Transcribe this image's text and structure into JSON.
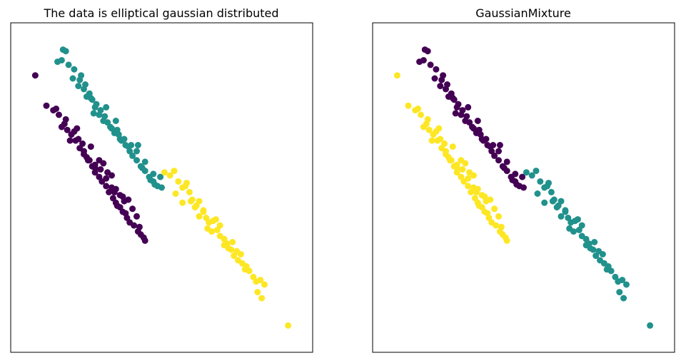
{
  "chart_data": [
    {
      "type": "scatter",
      "title": "The data is elliptical gaussian distributed",
      "xlabel": "",
      "ylabel": "",
      "xlim": [
        0,
        10
      ],
      "ylim": [
        0,
        10
      ],
      "grid": false,
      "series": [
        {
          "color": "#440154",
          "x": [
            0.45,
            0.85,
            1.1,
            1.3,
            1.5,
            1.6,
            1.75,
            1.9,
            2.05,
            2.2,
            2.35,
            2.5,
            2.6,
            2.75,
            2.85,
            3.0,
            3.1,
            3.25,
            3.35,
            3.5,
            3.6,
            3.75,
            3.85,
            4.0,
            4.15,
            4.25,
            4.4,
            1.2,
            1.4,
            1.7,
            2.0,
            2.3,
            2.6,
            2.9,
            3.2,
            3.5,
            3.8,
            4.1,
            1.55,
            1.85,
            2.15,
            2.45,
            2.75,
            3.05,
            3.35,
            3.65,
            3.95,
            2.4,
            2.8,
            3.2,
            3.6,
            3.4,
            3.0,
            2.6,
            4.2,
            4.35,
            3.7,
            3.3,
            2.2,
            1.95
          ],
          "y": [
            8.7,
            7.7,
            7.55,
            7.4,
            7.1,
            6.9,
            6.75,
            6.55,
            6.3,
            6.1,
            5.9,
            5.7,
            5.5,
            5.35,
            5.2,
            5.05,
            4.85,
            4.65,
            4.5,
            4.35,
            4.2,
            4.0,
            3.85,
            3.75,
            3.55,
            3.45,
            3.25,
            7.6,
            7.0,
            6.55,
            6.6,
            6.0,
            5.65,
            5.8,
            5.4,
            4.75,
            4.6,
            4.05,
            7.25,
            6.85,
            6.45,
            6.35,
            5.9,
            5.5,
            4.95,
            4.55,
            4.3,
            5.9,
            5.6,
            5.0,
            4.7,
            4.4,
            5.3,
            5.75,
            3.7,
            3.35,
            4.15,
            4.85,
            6.2,
            6.95
          ]
        },
        {
          "color": "#21918c",
          "x": [
            1.45,
            1.55,
            1.25,
            1.65,
            1.85,
            2.05,
            2.0,
            2.25,
            2.4,
            2.5,
            2.65,
            2.8,
            2.95,
            3.05,
            3.15,
            3.3,
            3.45,
            3.55,
            3.7,
            3.85,
            3.95,
            4.1,
            4.25,
            4.4,
            4.55,
            4.7,
            4.85,
            5.0,
            1.8,
            2.1,
            2.3,
            2.6,
            2.9,
            3.2,
            3.5,
            3.8,
            4.1,
            4.4,
            4.7,
            2.2,
            2.45,
            2.75,
            3.0,
            3.35,
            3.65,
            3.9,
            4.3,
            4.6,
            1.4,
            4.15,
            3.4,
            2.55,
            4.95,
            4.75
          ],
          "y": [
            9.55,
            9.5,
            9.15,
            9.05,
            8.9,
            8.55,
            8.35,
            8.4,
            8.1,
            7.9,
            7.75,
            7.55,
            7.35,
            7.15,
            7.0,
            6.8,
            6.75,
            6.55,
            6.4,
            6.2,
            6.05,
            5.9,
            5.7,
            5.55,
            5.35,
            5.2,
            5.05,
            5.0,
            8.6,
            8.7,
            8.0,
            7.65,
            7.2,
            6.95,
            6.6,
            6.35,
            6.2,
            5.85,
            5.45,
            8.25,
            7.95,
            7.4,
            7.65,
            7.2,
            6.6,
            6.4,
            5.65,
            5.25,
            9.2,
            6.4,
            6.9,
            7.45,
            5.35,
            5.1
          ],
          "note": ""
        },
        {
          "color": "#fde725",
          "x": [
            5.1,
            5.3,
            5.45,
            5.6,
            5.75,
            5.85,
            6.0,
            6.1,
            6.25,
            6.35,
            6.5,
            6.6,
            6.7,
            6.85,
            7.0,
            7.1,
            7.25,
            7.35,
            7.5,
            7.6,
            7.75,
            7.9,
            8.0,
            8.15,
            8.3,
            8.55,
            8.7,
            8.6,
            9.55,
            5.5,
            5.75,
            6.05,
            6.35,
            6.65,
            6.95,
            7.25,
            7.55,
            7.85,
            5.9,
            6.2,
            6.5,
            6.8,
            7.1,
            7.4,
            7.7,
            8.05,
            8.4,
            8.45
          ],
          "y": [
            5.5,
            5.4,
            5.55,
            5.2,
            5.0,
            5.05,
            4.85,
            4.6,
            4.4,
            4.55,
            4.2,
            4.0,
            3.85,
            3.9,
            3.6,
            3.4,
            3.3,
            3.15,
            2.95,
            2.75,
            2.6,
            2.5,
            2.3,
            2.25,
            2.05,
            1.95,
            1.8,
            1.35,
            0.45,
            4.8,
            4.5,
            4.55,
            4.05,
            3.65,
            3.95,
            3.1,
            3.2,
            2.8,
            5.15,
            4.35,
            4.25,
            3.55,
            3.75,
            3.0,
            2.9,
            2.4,
            1.9,
            1.55
          ]
        }
      ]
    },
    {
      "type": "scatter",
      "title": "GaussianMixture",
      "xlabel": "",
      "ylabel": "",
      "xlim": [
        0,
        10
      ],
      "ylim": [
        0,
        10
      ],
      "grid": false,
      "series": [
        {
          "color": "#440154",
          "x": [
            1.45,
            1.55,
            1.25,
            1.65,
            1.85,
            2.05,
            2.0,
            2.25,
            2.4,
            2.5,
            2.65,
            2.8,
            2.95,
            3.05,
            3.15,
            3.3,
            3.45,
            3.55,
            3.7,
            3.85,
            3.95,
            4.1,
            4.25,
            4.4,
            4.55,
            4.7,
            4.85,
            5.0,
            1.8,
            2.1,
            2.3,
            2.6,
            2.9,
            3.2,
            3.5,
            3.8,
            4.1,
            4.4,
            4.7,
            2.2,
            2.45,
            2.75,
            3.0,
            3.35,
            3.65,
            3.9,
            4.3,
            4.6,
            1.4,
            4.15,
            3.4,
            2.55,
            4.95,
            4.75
          ],
          "y": [
            9.55,
            9.5,
            9.15,
            9.05,
            8.9,
            8.55,
            8.35,
            8.4,
            8.1,
            7.9,
            7.75,
            7.55,
            7.35,
            7.15,
            7.0,
            6.8,
            6.75,
            6.55,
            6.4,
            6.2,
            6.05,
            5.9,
            5.7,
            5.55,
            5.35,
            5.2,
            5.05,
            5.0,
            8.6,
            8.7,
            8.0,
            7.65,
            7.2,
            6.95,
            6.6,
            6.35,
            6.2,
            5.85,
            5.45,
            8.25,
            7.95,
            7.4,
            7.65,
            7.2,
            6.6,
            6.4,
            5.65,
            5.25,
            9.2,
            6.4,
            6.9,
            7.45,
            5.35,
            5.1
          ]
        },
        {
          "color": "#21918c",
          "x": [
            5.1,
            5.3,
            5.45,
            5.6,
            5.75,
            5.85,
            6.0,
            6.1,
            6.25,
            6.35,
            6.5,
            6.6,
            6.7,
            6.85,
            7.0,
            7.1,
            7.25,
            7.35,
            7.5,
            7.6,
            7.75,
            7.9,
            8.0,
            8.15,
            8.3,
            8.55,
            8.7,
            8.6,
            9.55,
            5.5,
            5.75,
            6.05,
            6.35,
            6.65,
            6.95,
            7.25,
            7.55,
            7.85,
            5.9,
            6.2,
            6.5,
            6.8,
            7.1,
            7.4,
            7.7,
            8.05,
            8.4,
            8.45
          ],
          "y": [
            5.5,
            5.4,
            5.55,
            5.2,
            5.0,
            5.05,
            4.85,
            4.6,
            4.4,
            4.55,
            4.2,
            4.0,
            3.85,
            3.9,
            3.6,
            3.4,
            3.3,
            3.15,
            2.95,
            2.75,
            2.6,
            2.5,
            2.3,
            2.25,
            2.05,
            1.95,
            1.8,
            1.35,
            0.45,
            4.8,
            4.5,
            4.55,
            4.05,
            3.65,
            3.95,
            3.1,
            3.2,
            2.8,
            5.15,
            4.35,
            4.25,
            3.55,
            3.75,
            3.0,
            2.9,
            2.4,
            1.9,
            1.55
          ]
        },
        {
          "color": "#fde725",
          "x": [
            0.45,
            0.85,
            1.1,
            1.3,
            1.5,
            1.6,
            1.75,
            1.9,
            2.05,
            2.2,
            2.35,
            2.5,
            2.6,
            2.75,
            2.85,
            3.0,
            3.1,
            3.25,
            3.35,
            3.5,
            3.6,
            3.75,
            3.85,
            4.0,
            4.15,
            4.25,
            4.4,
            1.2,
            1.4,
            1.7,
            2.0,
            2.3,
            2.6,
            2.9,
            3.2,
            3.5,
            3.8,
            4.1,
            1.55,
            1.85,
            2.15,
            2.45,
            2.75,
            3.05,
            3.35,
            3.65,
            3.95,
            2.4,
            2.8,
            3.2,
            3.6,
            3.4,
            3.0,
            2.6,
            4.2,
            4.35,
            3.7,
            3.3,
            2.2,
            1.95
          ],
          "y": [
            8.7,
            7.7,
            7.55,
            7.4,
            7.1,
            6.9,
            6.75,
            6.55,
            6.3,
            6.1,
            5.9,
            5.7,
            5.5,
            5.35,
            5.2,
            5.05,
            4.85,
            4.65,
            4.5,
            4.35,
            4.2,
            4.0,
            3.85,
            3.75,
            3.55,
            3.45,
            3.25,
            7.6,
            7.0,
            6.55,
            6.6,
            6.0,
            5.65,
            5.8,
            5.4,
            4.75,
            4.6,
            4.05,
            7.25,
            6.85,
            6.45,
            6.35,
            5.9,
            5.5,
            4.95,
            4.55,
            4.3,
            5.9,
            5.6,
            5.0,
            4.7,
            4.4,
            5.3,
            5.75,
            3.7,
            3.35,
            4.15,
            4.85,
            6.2,
            6.95
          ]
        }
      ]
    }
  ]
}
